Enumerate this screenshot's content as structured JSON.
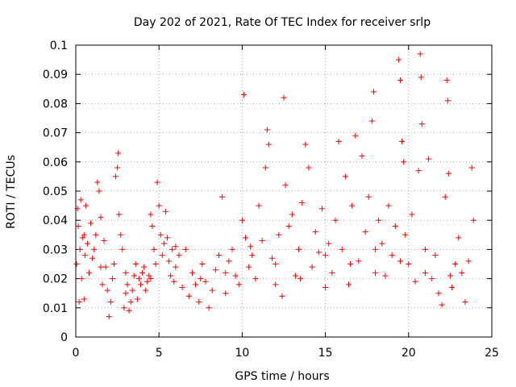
{
  "chart_data": {
    "type": "scatter",
    "title": "Day 202 of 2021, Rate Of TEC Index for receiver srlp",
    "xlabel": "GPS time / hours",
    "ylabel": "ROTI / TECUs",
    "xlim": [
      0,
      25
    ],
    "ylim": [
      0,
      0.1
    ],
    "xticks": [
      "0",
      "5",
      "10",
      "15",
      "20",
      "25"
    ],
    "xtick_values": [
      0,
      5,
      10,
      15,
      20,
      25
    ],
    "yticks": [
      "0",
      "0.01",
      "0.02",
      "0.03",
      "0.04",
      "0.05",
      "0.06",
      "0.07",
      "0.08",
      "0.09",
      "0.1"
    ],
    "ytick_values": [
      0,
      0.01,
      0.02,
      0.03,
      0.04,
      0.05,
      0.06,
      0.07,
      0.08,
      0.09,
      0.1
    ],
    "grid": true,
    "marker": "plus",
    "color": "#ff0000",
    "series": [
      {
        "values": [
          [
            0.05,
            0.025
          ],
          [
            0.1,
            0.044
          ],
          [
            0.15,
            0.038
          ],
          [
            0.2,
            0.012
          ],
          [
            0.25,
            0.03
          ],
          [
            0.3,
            0.047
          ],
          [
            0.35,
            0.02
          ],
          [
            0.4,
            0.034
          ],
          [
            0.5,
            0.013
          ],
          [
            0.55,
            0.028
          ],
          [
            0.6,
            0.045
          ],
          [
            0.7,
            0.032
          ],
          [
            0.8,
            0.022
          ],
          [
            0.9,
            0.039
          ],
          [
            1.0,
            0.027
          ],
          [
            1.1,
            0.03
          ],
          [
            1.2,
            0.035
          ],
          [
            1.3,
            0.053
          ],
          [
            1.4,
            0.05
          ],
          [
            1.5,
            0.041
          ],
          [
            1.6,
            0.018
          ],
          [
            1.7,
            0.033
          ],
          [
            1.8,
            0.024
          ],
          [
            1.9,
            0.016
          ],
          [
            2.0,
            0.007
          ],
          [
            2.1,
            0.012
          ],
          [
            2.2,
            0.02
          ],
          [
            2.3,
            0.025
          ],
          [
            2.4,
            0.055
          ],
          [
            2.5,
            0.058
          ],
          [
            2.55,
            0.063
          ],
          [
            2.6,
            0.042
          ],
          [
            2.7,
            0.035
          ],
          [
            2.8,
            0.03
          ],
          [
            2.9,
            0.01
          ],
          [
            3.0,
            0.015
          ],
          [
            3.1,
            0.018
          ],
          [
            3.2,
            0.009
          ],
          [
            3.3,
            0.012
          ],
          [
            3.4,
            0.016
          ],
          [
            3.5,
            0.021
          ],
          [
            3.6,
            0.025
          ],
          [
            3.7,
            0.013
          ],
          [
            3.8,
            0.02
          ],
          [
            3.9,
            0.018
          ],
          [
            4.0,
            0.022
          ],
          [
            4.1,
            0.024
          ],
          [
            4.2,
            0.016
          ],
          [
            4.3,
            0.019
          ],
          [
            4.4,
            0.021
          ],
          [
            4.5,
            0.042
          ],
          [
            4.6,
            0.038
          ],
          [
            4.7,
            0.03
          ],
          [
            4.8,
            0.025
          ],
          [
            4.9,
            0.053
          ],
          [
            5.0,
            0.045
          ],
          [
            5.1,
            0.035
          ],
          [
            5.2,
            0.028
          ],
          [
            5.3,
            0.032
          ],
          [
            5.4,
            0.043
          ],
          [
            5.5,
            0.034
          ],
          [
            5.6,
            0.026
          ],
          [
            5.7,
            0.021
          ],
          [
            5.8,
            0.03
          ],
          [
            5.9,
            0.019
          ],
          [
            6.0,
            0.024
          ],
          [
            6.2,
            0.028
          ],
          [
            6.4,
            0.017
          ],
          [
            6.6,
            0.03
          ],
          [
            6.8,
            0.014
          ],
          [
            7.0,
            0.022
          ],
          [
            7.2,
            0.018
          ],
          [
            7.4,
            0.012
          ],
          [
            7.6,
            0.025
          ],
          [
            7.8,
            0.019
          ],
          [
            8.0,
            0.01
          ],
          [
            8.2,
            0.016
          ],
          [
            8.4,
            0.023
          ],
          [
            8.6,
            0.028
          ],
          [
            8.8,
            0.048
          ],
          [
            9.0,
            0.015
          ],
          [
            9.2,
            0.026
          ],
          [
            9.4,
            0.03
          ],
          [
            9.6,
            0.021
          ],
          [
            9.8,
            0.018
          ],
          [
            10.0,
            0.04
          ],
          [
            10.1,
            0.083
          ],
          [
            10.2,
            0.034
          ],
          [
            10.4,
            0.024
          ],
          [
            10.6,
            0.028
          ],
          [
            10.8,
            0.02
          ],
          [
            11.0,
            0.045
          ],
          [
            11.2,
            0.033
          ],
          [
            11.4,
            0.058
          ],
          [
            11.5,
            0.071
          ],
          [
            11.6,
            0.066
          ],
          [
            11.8,
            0.027
          ],
          [
            12.0,
            0.018
          ],
          [
            12.2,
            0.035
          ],
          [
            12.4,
            0.014
          ],
          [
            12.5,
            0.082
          ],
          [
            12.6,
            0.052
          ],
          [
            12.8,
            0.038
          ],
          [
            13.0,
            0.042
          ],
          [
            13.2,
            0.021
          ],
          [
            13.4,
            0.03
          ],
          [
            13.6,
            0.046
          ],
          [
            13.8,
            0.066
          ],
          [
            14.0,
            0.058
          ],
          [
            14.2,
            0.024
          ],
          [
            14.4,
            0.036
          ],
          [
            14.6,
            0.029
          ],
          [
            14.8,
            0.044
          ],
          [
            15.0,
            0.017
          ],
          [
            15.2,
            0.032
          ],
          [
            15.4,
            0.022
          ],
          [
            15.6,
            0.04
          ],
          [
            15.8,
            0.067
          ],
          [
            16.0,
            0.03
          ],
          [
            16.2,
            0.055
          ],
          [
            16.4,
            0.018
          ],
          [
            16.6,
            0.045
          ],
          [
            16.8,
            0.069
          ],
          [
            17.0,
            0.026
          ],
          [
            17.2,
            0.062
          ],
          [
            17.4,
            0.036
          ],
          [
            17.6,
            0.048
          ],
          [
            17.8,
            0.074
          ],
          [
            17.9,
            0.084
          ],
          [
            18.0,
            0.022
          ],
          [
            18.2,
            0.04
          ],
          [
            18.4,
            0.032
          ],
          [
            18.6,
            0.021
          ],
          [
            18.8,
            0.045
          ],
          [
            19.0,
            0.028
          ],
          [
            19.2,
            0.038
          ],
          [
            19.4,
            0.095
          ],
          [
            19.5,
            0.088
          ],
          [
            19.6,
            0.067
          ],
          [
            19.7,
            0.06
          ],
          [
            19.8,
            0.035
          ],
          [
            20.0,
            0.025
          ],
          [
            20.2,
            0.042
          ],
          [
            20.4,
            0.019
          ],
          [
            20.6,
            0.057
          ],
          [
            20.7,
            0.097
          ],
          [
            20.75,
            0.089
          ],
          [
            20.8,
            0.073
          ],
          [
            21.0,
            0.03
          ],
          [
            21.2,
            0.061
          ],
          [
            21.4,
            0.02
          ],
          [
            21.6,
            0.028
          ],
          [
            21.8,
            0.015
          ],
          [
            22.0,
            0.011
          ],
          [
            22.2,
            0.048
          ],
          [
            22.3,
            0.088
          ],
          [
            22.35,
            0.081
          ],
          [
            22.4,
            0.056
          ],
          [
            22.6,
            0.017
          ],
          [
            22.8,
            0.025
          ],
          [
            23.0,
            0.034
          ],
          [
            23.2,
            0.022
          ],
          [
            23.4,
            0.012
          ],
          [
            23.6,
            0.026
          ],
          [
            23.8,
            0.058
          ],
          [
            23.9,
            0.04
          ],
          [
            0.5,
            0.035
          ],
          [
            1.5,
            0.024
          ],
          [
            3.0,
            0.022
          ],
          [
            4.5,
            0.02
          ],
          [
            6.0,
            0.031
          ],
          [
            7.5,
            0.02
          ],
          [
            9.0,
            0.022
          ],
          [
            10.5,
            0.031
          ],
          [
            12.0,
            0.025
          ],
          [
            13.5,
            0.02
          ],
          [
            15.0,
            0.028
          ],
          [
            16.5,
            0.025
          ],
          [
            18.0,
            0.03
          ],
          [
            19.5,
            0.026
          ],
          [
            21.0,
            0.022
          ],
          [
            22.5,
            0.021
          ]
        ]
      }
    ]
  }
}
